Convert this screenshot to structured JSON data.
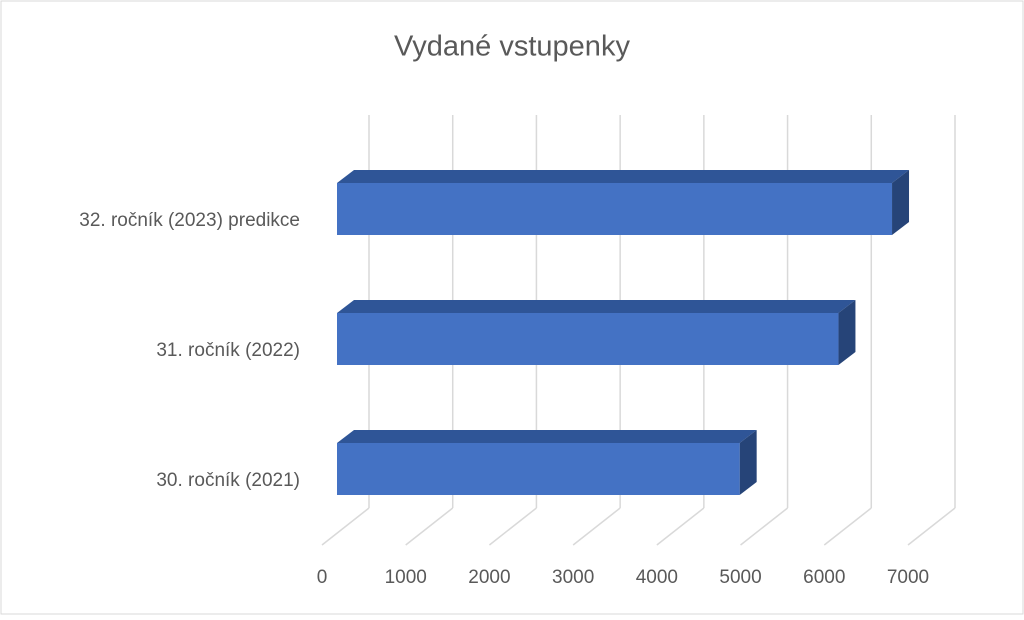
{
  "chart_data": {
    "type": "bar3d",
    "orientation": "horizontal",
    "title": "Vydané vstupenky",
    "categories": [
      "30. ročník (2021)",
      "31. ročník (2022)",
      "32. ročník (2023) predikce"
    ],
    "values": [
      4810,
      5990,
      6630
    ],
    "color": "#4472c4",
    "xlim": [
      0,
      7000
    ],
    "xticks": [
      0,
      1000,
      2000,
      3000,
      4000,
      5000,
      6000,
      7000
    ],
    "grid": true
  }
}
